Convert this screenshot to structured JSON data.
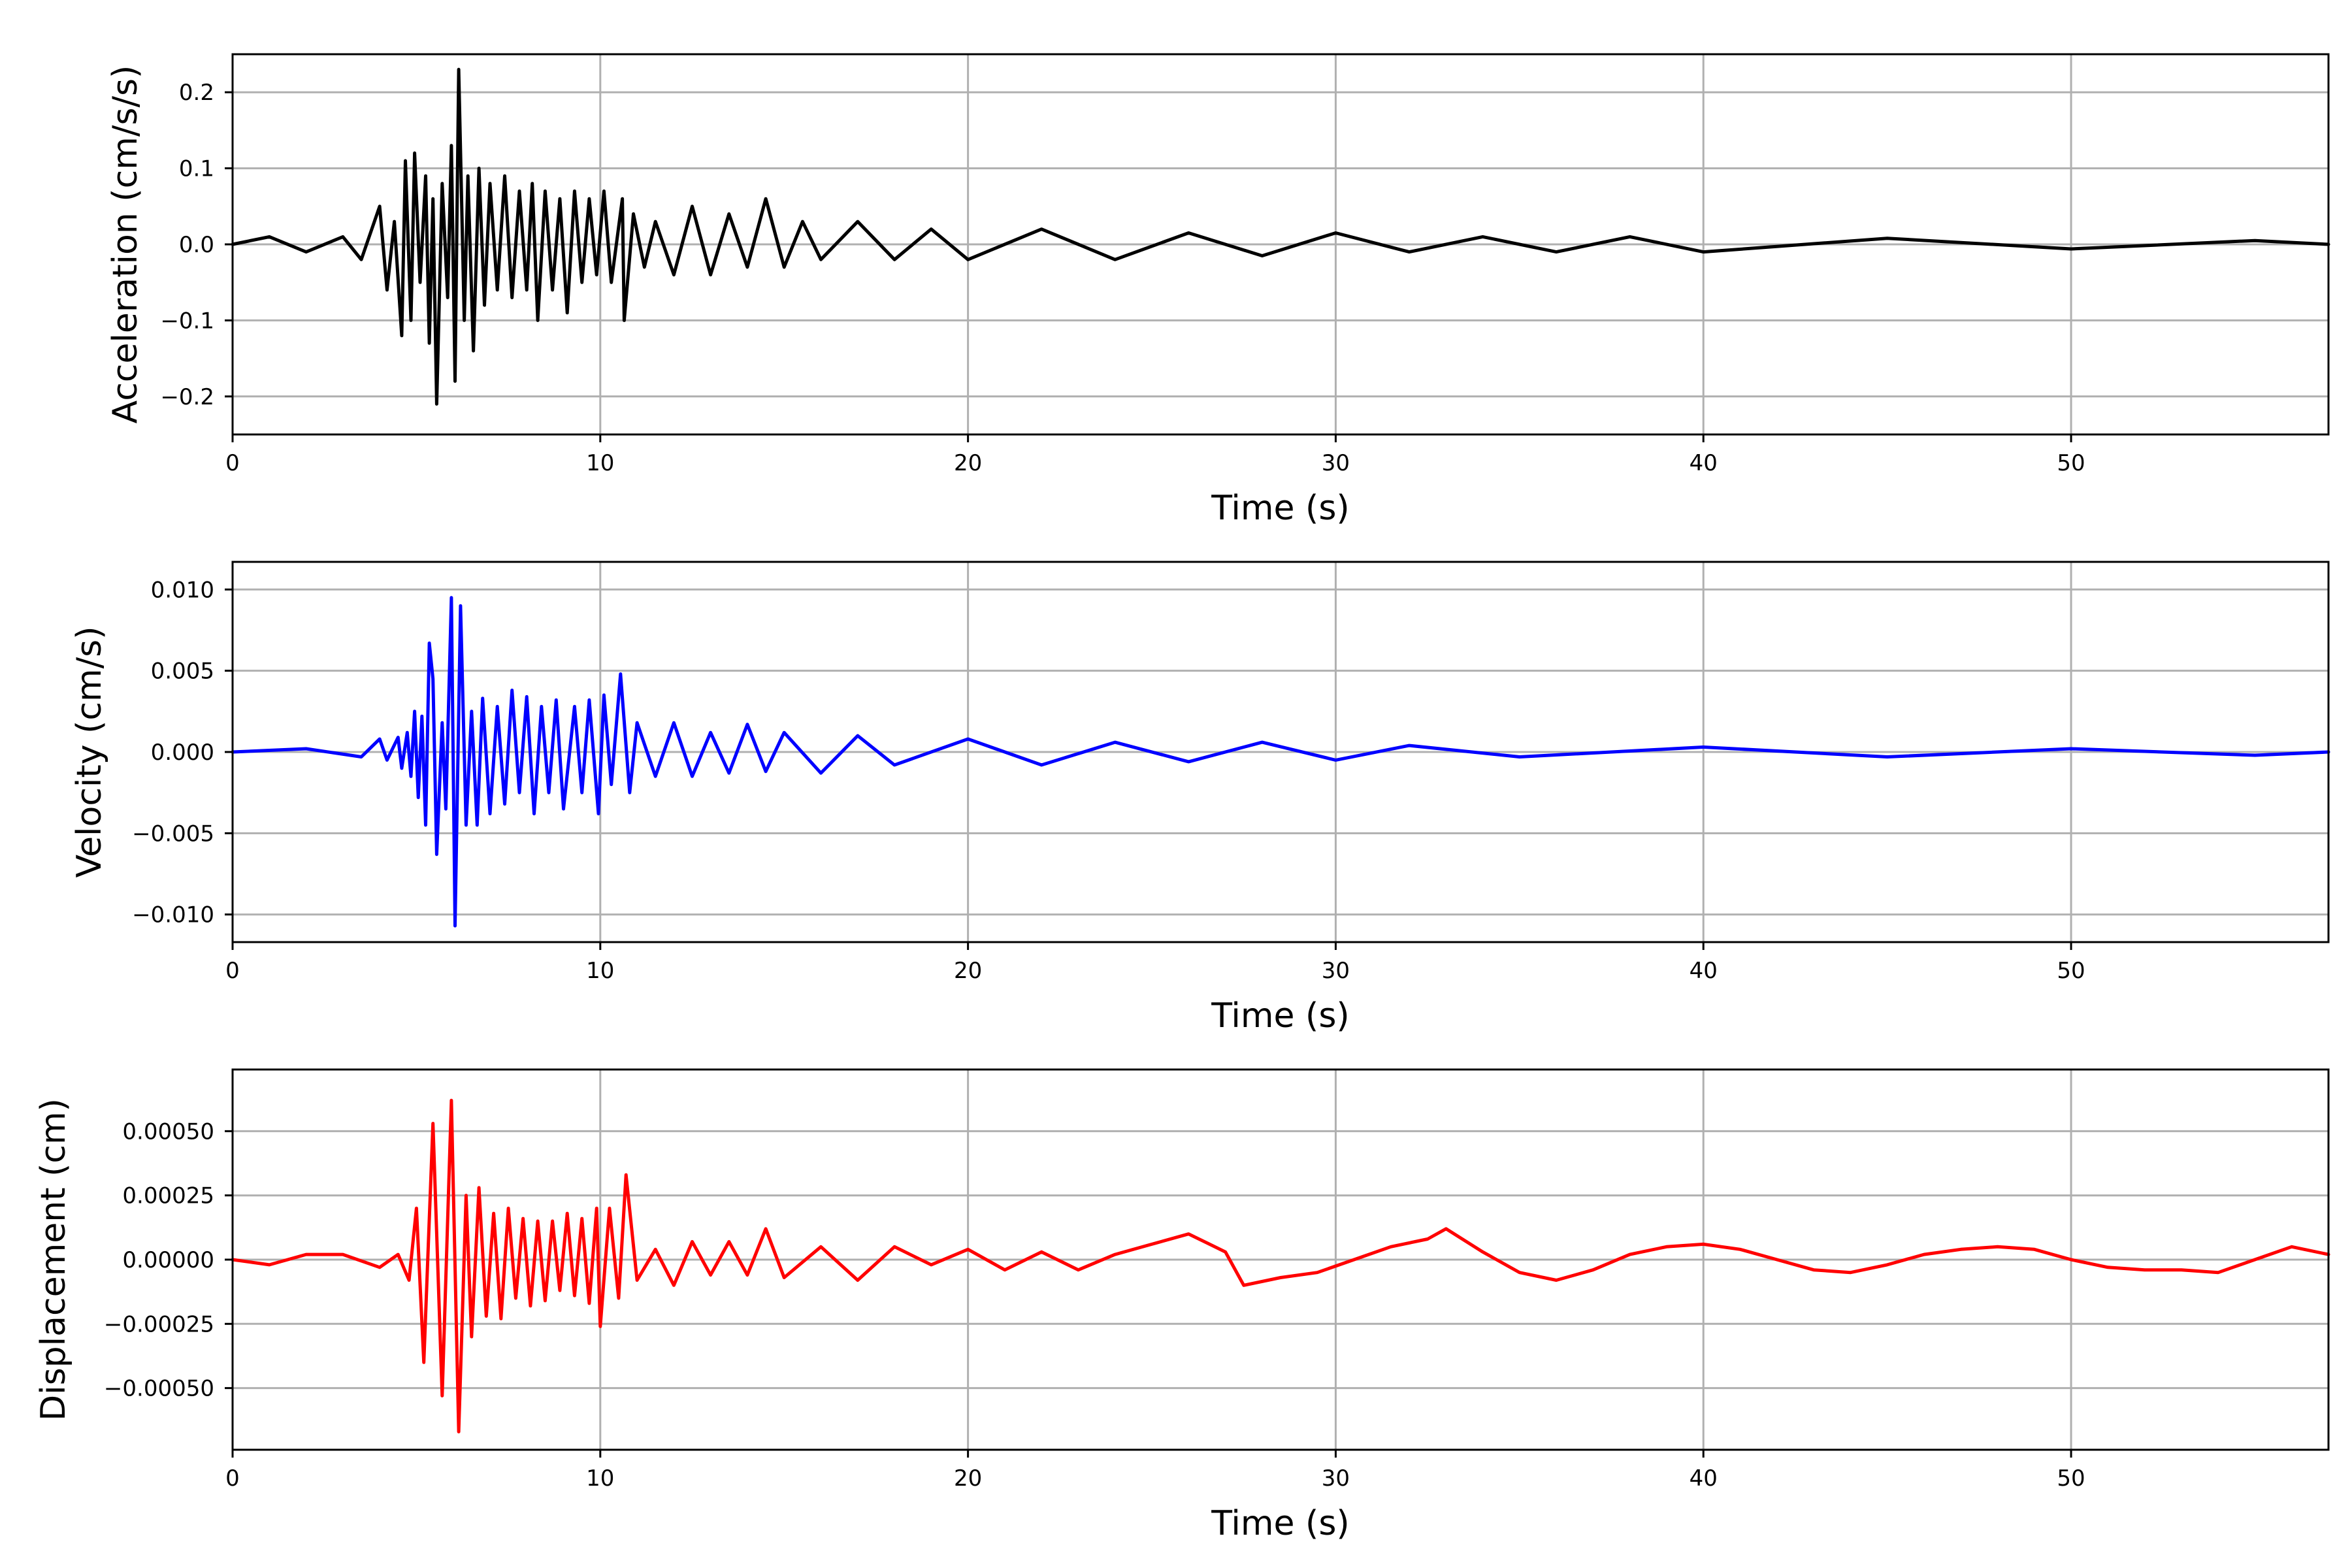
{
  "figure": {
    "background": "#ffffff",
    "grid_color": "#b0b0b0"
  },
  "chart_data": [
    {
      "type": "line",
      "xlabel": "Time (s)",
      "ylabel": "Acceleration (cm/s/s)",
      "xlim": [
        0,
        57
      ],
      "ylim": [
        -0.25,
        0.25
      ],
      "xticks": [
        0,
        10,
        20,
        30,
        40,
        50
      ],
      "yticks": [
        -0.2,
        -0.1,
        0.0,
        0.1,
        0.2
      ],
      "ytick_labels": [
        "−0.2",
        "−0.1",
        "0.0",
        "0.1",
        "0.2"
      ],
      "grid": true,
      "series": [
        {
          "color": "#000000",
          "points": [
            [
              0,
              0.0
            ],
            [
              1,
              0.01
            ],
            [
              2,
              -0.01
            ],
            [
              3,
              0.01
            ],
            [
              3.5,
              -0.02
            ],
            [
              4.0,
              0.05
            ],
            [
              4.2,
              -0.06
            ],
            [
              4.4,
              0.03
            ],
            [
              4.6,
              -0.12
            ],
            [
              4.7,
              0.11
            ],
            [
              4.85,
              -0.1
            ],
            [
              4.95,
              0.12
            ],
            [
              5.1,
              -0.05
            ],
            [
              5.25,
              0.09
            ],
            [
              5.35,
              -0.13
            ],
            [
              5.45,
              0.06
            ],
            [
              5.55,
              -0.21
            ],
            [
              5.7,
              0.08
            ],
            [
              5.85,
              -0.07
            ],
            [
              5.95,
              0.13
            ],
            [
              6.05,
              -0.18
            ],
            [
              6.15,
              0.23
            ],
            [
              6.3,
              -0.1
            ],
            [
              6.4,
              0.09
            ],
            [
              6.55,
              -0.14
            ],
            [
              6.7,
              0.1
            ],
            [
              6.85,
              -0.08
            ],
            [
              7.0,
              0.08
            ],
            [
              7.2,
              -0.06
            ],
            [
              7.4,
              0.09
            ],
            [
              7.6,
              -0.07
            ],
            [
              7.8,
              0.07
            ],
            [
              8.0,
              -0.06
            ],
            [
              8.15,
              0.08
            ],
            [
              8.3,
              -0.1
            ],
            [
              8.5,
              0.07
            ],
            [
              8.7,
              -0.06
            ],
            [
              8.9,
              0.06
            ],
            [
              9.1,
              -0.09
            ],
            [
              9.3,
              0.07
            ],
            [
              9.5,
              -0.05
            ],
            [
              9.7,
              0.06
            ],
            [
              9.9,
              -0.04
            ],
            [
              10.1,
              0.07
            ],
            [
              10.3,
              -0.05
            ],
            [
              10.6,
              0.06
            ],
            [
              10.65,
              -0.1
            ],
            [
              10.9,
              0.04
            ],
            [
              11.2,
              -0.03
            ],
            [
              11.5,
              0.03
            ],
            [
              12.0,
              -0.04
            ],
            [
              12.5,
              0.05
            ],
            [
              13.0,
              -0.04
            ],
            [
              13.5,
              0.04
            ],
            [
              14.0,
              -0.03
            ],
            [
              14.5,
              0.06
            ],
            [
              15.0,
              -0.03
            ],
            [
              15.5,
              0.03
            ],
            [
              16.0,
              -0.02
            ],
            [
              17.0,
              0.03
            ],
            [
              18.0,
              -0.02
            ],
            [
              19.0,
              0.02
            ],
            [
              20.0,
              -0.02
            ],
            [
              22.0,
              0.02
            ],
            [
              24.0,
              -0.02
            ],
            [
              26.0,
              0.015
            ],
            [
              28.0,
              -0.015
            ],
            [
              30.0,
              0.015
            ],
            [
              32.0,
              -0.01
            ],
            [
              34.0,
              0.01
            ],
            [
              36.0,
              -0.01
            ],
            [
              38.0,
              0.01
            ],
            [
              40.0,
              -0.01
            ],
            [
              45.0,
              0.008
            ],
            [
              50.0,
              -0.006
            ],
            [
              55.0,
              0.005
            ],
            [
              57.0,
              0.0
            ]
          ]
        }
      ]
    },
    {
      "type": "line",
      "xlabel": "Time (s)",
      "ylabel": "Velocity (cm/s)",
      "xlim": [
        0,
        57
      ],
      "ylim": [
        -0.0117,
        0.0117
      ],
      "xticks": [
        0,
        10,
        20,
        30,
        40,
        50
      ],
      "yticks": [
        -0.01,
        -0.005,
        0.0,
        0.005,
        0.01
      ],
      "ytick_labels": [
        "−0.010",
        "−0.005",
        "0.000",
        "0.005",
        "0.010"
      ],
      "grid": true,
      "series": [
        {
          "color": "#0000ff",
          "points": [
            [
              0,
              0.0
            ],
            [
              2,
              0.0002
            ],
            [
              3.5,
              -0.0003
            ],
            [
              4.0,
              0.0008
            ],
            [
              4.2,
              -0.0005
            ],
            [
              4.5,
              0.0009
            ],
            [
              4.6,
              -0.001
            ],
            [
              4.75,
              0.0012
            ],
            [
              4.85,
              -0.0015
            ],
            [
              4.95,
              0.0025
            ],
            [
              5.05,
              -0.0028
            ],
            [
              5.15,
              0.0022
            ],
            [
              5.25,
              -0.0045
            ],
            [
              5.35,
              0.0067
            ],
            [
              5.45,
              0.0045
            ],
            [
              5.55,
              -0.0063
            ],
            [
              5.7,
              0.0018
            ],
            [
              5.8,
              -0.0035
            ],
            [
              5.95,
              0.0095
            ],
            [
              6.05,
              -0.0107
            ],
            [
              6.2,
              0.009
            ],
            [
              6.35,
              -0.0045
            ],
            [
              6.5,
              0.0025
            ],
            [
              6.65,
              -0.0045
            ],
            [
              6.8,
              0.0033
            ],
            [
              7.0,
              -0.0038
            ],
            [
              7.2,
              0.0028
            ],
            [
              7.4,
              -0.0032
            ],
            [
              7.6,
              0.0038
            ],
            [
              7.8,
              -0.0025
            ],
            [
              8.0,
              0.0034
            ],
            [
              8.2,
              -0.0038
            ],
            [
              8.4,
              0.0028
            ],
            [
              8.6,
              -0.0025
            ],
            [
              8.8,
              0.0032
            ],
            [
              9.0,
              -0.0035
            ],
            [
              9.3,
              0.0028
            ],
            [
              9.5,
              -0.0025
            ],
            [
              9.7,
              0.0032
            ],
            [
              9.95,
              -0.0038
            ],
            [
              10.1,
              0.0035
            ],
            [
              10.3,
              -0.002
            ],
            [
              10.55,
              0.0048
            ],
            [
              10.8,
              -0.0025
            ],
            [
              11.0,
              0.0018
            ],
            [
              11.5,
              -0.0015
            ],
            [
              12.0,
              0.0018
            ],
            [
              12.5,
              -0.0015
            ],
            [
              13.0,
              0.0012
            ],
            [
              13.5,
              -0.0013
            ],
            [
              14.0,
              0.0017
            ],
            [
              14.5,
              -0.0012
            ],
            [
              15.0,
              0.0012
            ],
            [
              16.0,
              -0.0013
            ],
            [
              17.0,
              0.001
            ],
            [
              18.0,
              -0.0008
            ],
            [
              20.0,
              0.0008
            ],
            [
              22.0,
              -0.0008
            ],
            [
              24.0,
              0.0006
            ],
            [
              26.0,
              -0.0006
            ],
            [
              28.0,
              0.0006
            ],
            [
              30.0,
              -0.0005
            ],
            [
              32.0,
              0.0004
            ],
            [
              35.0,
              -0.0003
            ],
            [
              40.0,
              0.0003
            ],
            [
              45.0,
              -0.0003
            ],
            [
              50.0,
              0.0002
            ],
            [
              55.0,
              -0.0002
            ],
            [
              57.0,
              0.0
            ]
          ]
        }
      ]
    },
    {
      "type": "line",
      "xlabel": "Time (s)",
      "ylabel": "Displacement (cm)",
      "xlim": [
        0,
        57
      ],
      "ylim": [
        -0.00074,
        0.00074
      ],
      "xticks": [
        0,
        10,
        20,
        30,
        40,
        50
      ],
      "yticks": [
        -0.0005,
        -0.00025,
        0.0,
        0.00025,
        0.0005
      ],
      "ytick_labels": [
        "−0.00050",
        "−0.00025",
        "0.00000",
        "0.00025",
        "0.00050"
      ],
      "grid": true,
      "series": [
        {
          "color": "#ff0000",
          "points": [
            [
              0,
              0.0
            ],
            [
              1,
              -2e-05
            ],
            [
              2,
              2e-05
            ],
            [
              3,
              2e-05
            ],
            [
              4,
              -3e-05
            ],
            [
              4.5,
              2e-05
            ],
            [
              4.8,
              -8e-05
            ],
            [
              5.0,
              0.0002
            ],
            [
              5.2,
              -0.0004
            ],
            [
              5.45,
              0.00053
            ],
            [
              5.7,
              -0.00053
            ],
            [
              5.95,
              0.00062
            ],
            [
              6.15,
              -0.00067
            ],
            [
              6.35,
              0.00025
            ],
            [
              6.5,
              -0.0003
            ],
            [
              6.7,
              0.00028
            ],
            [
              6.9,
              -0.00022
            ],
            [
              7.1,
              0.00018
            ],
            [
              7.3,
              -0.00023
            ],
            [
              7.5,
              0.0002
            ],
            [
              7.7,
              -0.00015
            ],
            [
              7.9,
              0.00016
            ],
            [
              8.1,
              -0.00018
            ],
            [
              8.3,
              0.00015
            ],
            [
              8.5,
              -0.00016
            ],
            [
              8.7,
              0.00015
            ],
            [
              8.9,
              -0.00012
            ],
            [
              9.1,
              0.00018
            ],
            [
              9.3,
              -0.00014
            ],
            [
              9.5,
              0.00016
            ],
            [
              9.7,
              -0.00017
            ],
            [
              9.9,
              0.0002
            ],
            [
              10.0,
              -0.00026
            ],
            [
              10.25,
              0.0002
            ],
            [
              10.5,
              -0.00015
            ],
            [
              10.7,
              0.00033
            ],
            [
              11.0,
              -8e-05
            ],
            [
              11.5,
              4e-05
            ],
            [
              12.0,
              -0.0001
            ],
            [
              12.5,
              7e-05
            ],
            [
              13.0,
              -6e-05
            ],
            [
              13.5,
              7e-05
            ],
            [
              14.0,
              -6e-05
            ],
            [
              14.5,
              0.00012
            ],
            [
              15.0,
              -7e-05
            ],
            [
              16.0,
              5e-05
            ],
            [
              17.0,
              -8e-05
            ],
            [
              18.0,
              5e-05
            ],
            [
              19.0,
              -2e-05
            ],
            [
              20.0,
              4e-05
            ],
            [
              21.0,
              -4e-05
            ],
            [
              22.0,
              3e-05
            ],
            [
              23.0,
              -4e-05
            ],
            [
              24.0,
              2e-05
            ],
            [
              25.0,
              6e-05
            ],
            [
              26.0,
              0.0001
            ],
            [
              27.0,
              3e-05
            ],
            [
              27.5,
              -0.0001
            ],
            [
              28.5,
              -7e-05
            ],
            [
              29.5,
              -5e-05
            ],
            [
              30.5,
              0.0
            ],
            [
              31.5,
              5e-05
            ],
            [
              32.5,
              8e-05
            ],
            [
              33.0,
              0.00012
            ],
            [
              34.0,
              3e-05
            ],
            [
              35.0,
              -5e-05
            ],
            [
              36.0,
              -8e-05
            ],
            [
              37.0,
              -4e-05
            ],
            [
              38.0,
              2e-05
            ],
            [
              39.0,
              5e-05
            ],
            [
              40.0,
              6e-05
            ],
            [
              41.0,
              4e-05
            ],
            [
              42.0,
              0.0
            ],
            [
              43.0,
              -4e-05
            ],
            [
              44.0,
              -5e-05
            ],
            [
              45.0,
              -2e-05
            ],
            [
              46.0,
              2e-05
            ],
            [
              47.0,
              4e-05
            ],
            [
              48.0,
              5e-05
            ],
            [
              49.0,
              4e-05
            ],
            [
              50.0,
              0.0
            ],
            [
              51.0,
              -3e-05
            ],
            [
              52.0,
              -4e-05
            ],
            [
              53.0,
              -4e-05
            ],
            [
              54.0,
              -5e-05
            ],
            [
              55.0,
              0.0
            ],
            [
              56.0,
              5e-05
            ],
            [
              57.0,
              2e-05
            ]
          ]
        }
      ]
    }
  ]
}
